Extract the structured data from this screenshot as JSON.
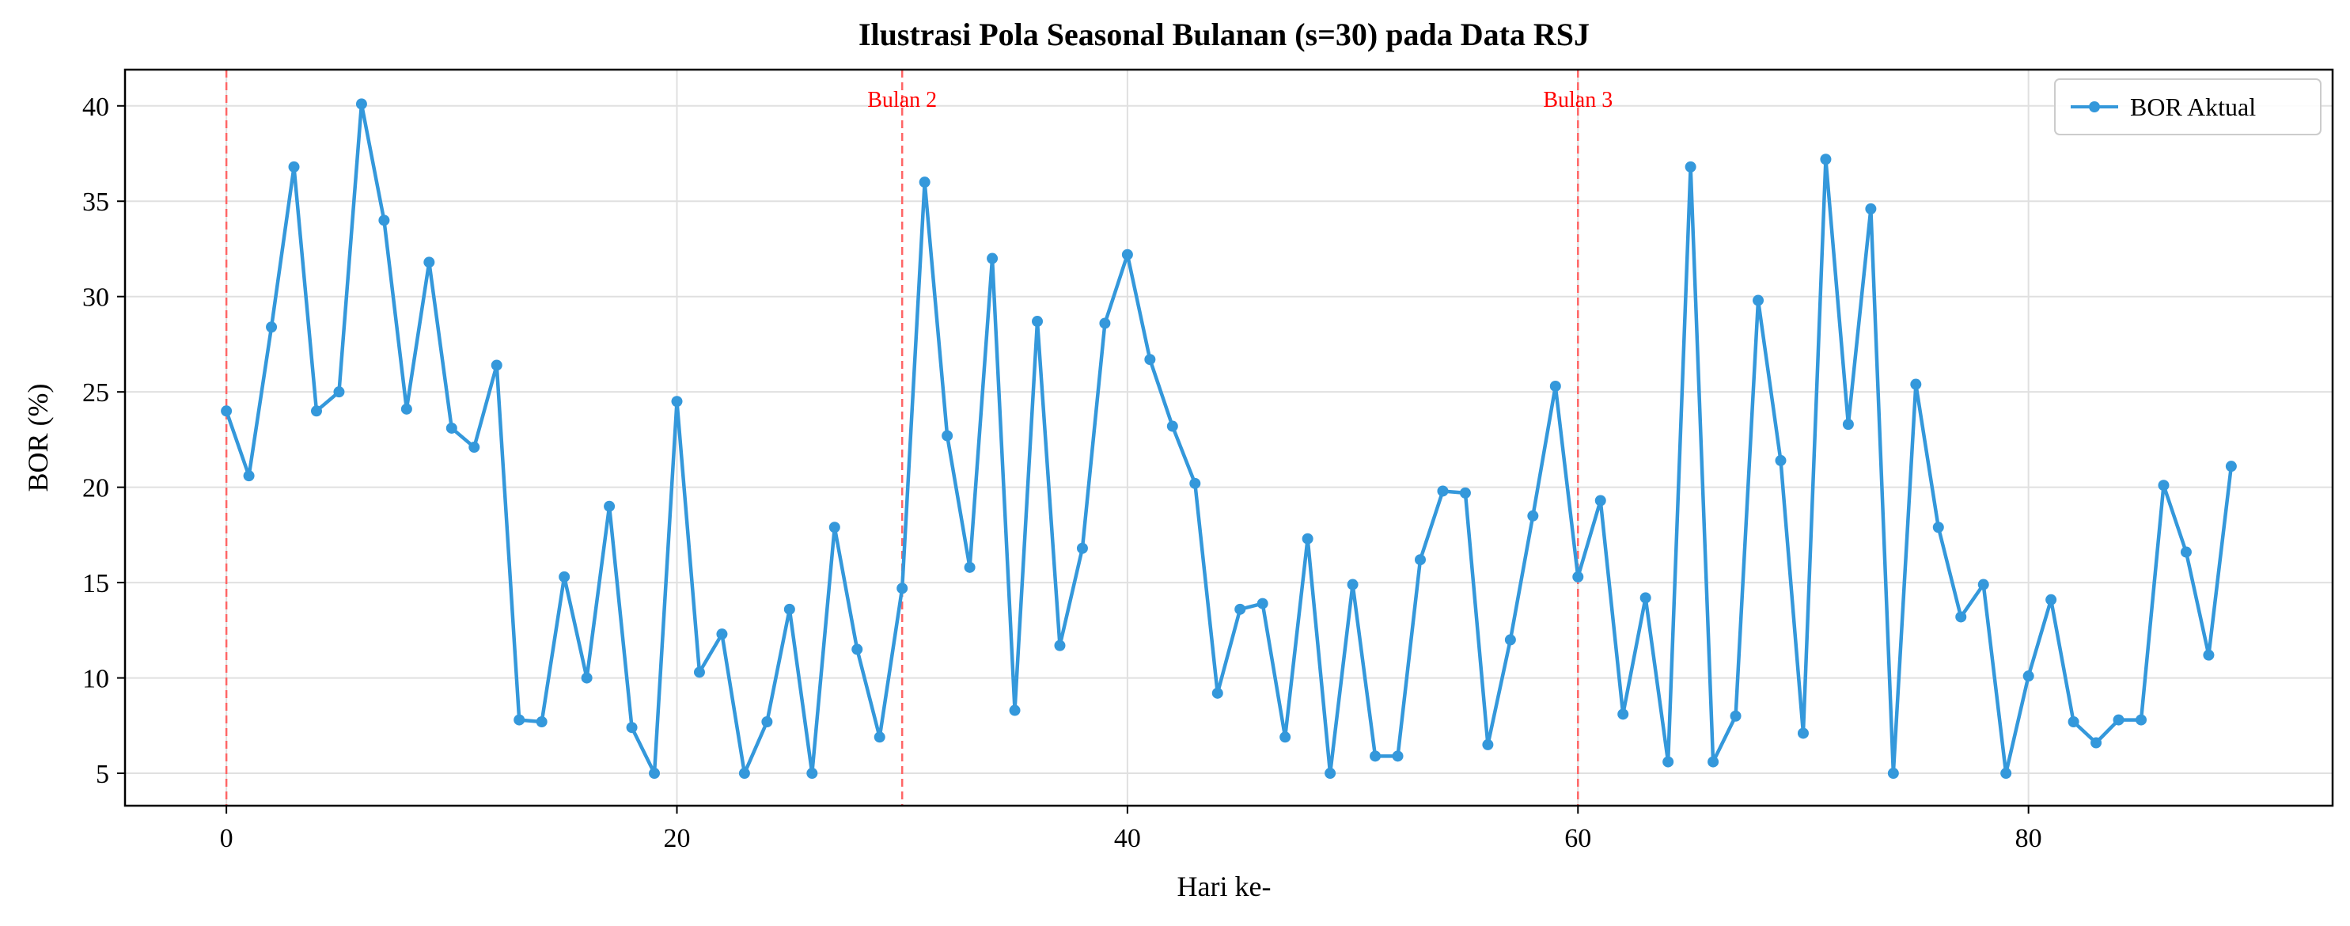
{
  "chart_data": {
    "type": "line",
    "title": "Ilustrasi Pola Seasonal Bulanan (s=30) pada Data RSJ",
    "xlabel": "Hari ke-",
    "ylabel": "BOR (%)",
    "xlim": [
      -4.5,
      93.5
    ],
    "ylim": [
      3.3,
      41.9
    ],
    "xticks": [
      0,
      20,
      40,
      60,
      80
    ],
    "yticks": [
      5,
      10,
      15,
      20,
      25,
      30,
      35,
      40
    ],
    "grid": true,
    "legend_position": "top-right",
    "series": [
      {
        "name": "BOR Aktual",
        "color": "#3498db",
        "marker": "circle",
        "x": [
          0,
          1,
          2,
          3,
          4,
          5,
          6,
          7,
          8,
          9,
          10,
          11,
          12,
          13,
          14,
          15,
          16,
          17,
          18,
          19,
          20,
          21,
          22,
          23,
          24,
          25,
          26,
          27,
          28,
          29,
          30,
          31,
          32,
          33,
          34,
          35,
          36,
          37,
          38,
          39,
          40,
          41,
          42,
          43,
          44,
          45,
          46,
          47,
          48,
          49,
          50,
          51,
          52,
          53,
          54,
          55,
          56,
          57,
          58,
          59,
          60,
          61,
          62,
          63,
          64,
          65,
          66,
          67,
          68,
          69,
          70,
          71,
          72,
          73,
          74,
          75,
          76,
          77,
          78,
          79,
          80,
          81,
          82,
          83,
          84,
          85,
          86,
          87,
          88,
          89
        ],
        "values": [
          24.0,
          20.6,
          28.4,
          36.8,
          24.0,
          25.0,
          40.1,
          34.0,
          24.1,
          31.8,
          23.1,
          22.1,
          26.4,
          7.8,
          7.7,
          15.3,
          10.0,
          19.0,
          7.4,
          5.0,
          24.5,
          10.3,
          12.3,
          5.0,
          7.7,
          13.6,
          5.0,
          17.9,
          11.5,
          6.9,
          14.7,
          36.0,
          22.7,
          15.8,
          32.0,
          8.3,
          28.7,
          11.7,
          16.8,
          28.6,
          32.2,
          26.7,
          23.2,
          20.2,
          9.2,
          13.6,
          13.9,
          6.9,
          17.3,
          5.0,
          14.9,
          5.9,
          5.9,
          16.2,
          19.8,
          19.7,
          6.5,
          12.0,
          18.5,
          25.3,
          15.3,
          19.3,
          8.1,
          14.2,
          5.6,
          36.8,
          5.6,
          8.0,
          29.8,
          21.4,
          7.1,
          37.2,
          23.3,
          34.6,
          5.0,
          25.4,
          17.9,
          13.2,
          14.9,
          5.0,
          10.1,
          14.1,
          7.7,
          6.6,
          7.8,
          7.8,
          20.1,
          16.6,
          11.2,
          21.1
        ]
      }
    ],
    "vertical_lines": [
      {
        "x": 0,
        "label": "",
        "color": "#ff6666"
      },
      {
        "x": 30,
        "label": "Bulan 2",
        "color": "#ff6666"
      },
      {
        "x": 60,
        "label": "Bulan 3",
        "color": "#ff6666"
      }
    ]
  }
}
